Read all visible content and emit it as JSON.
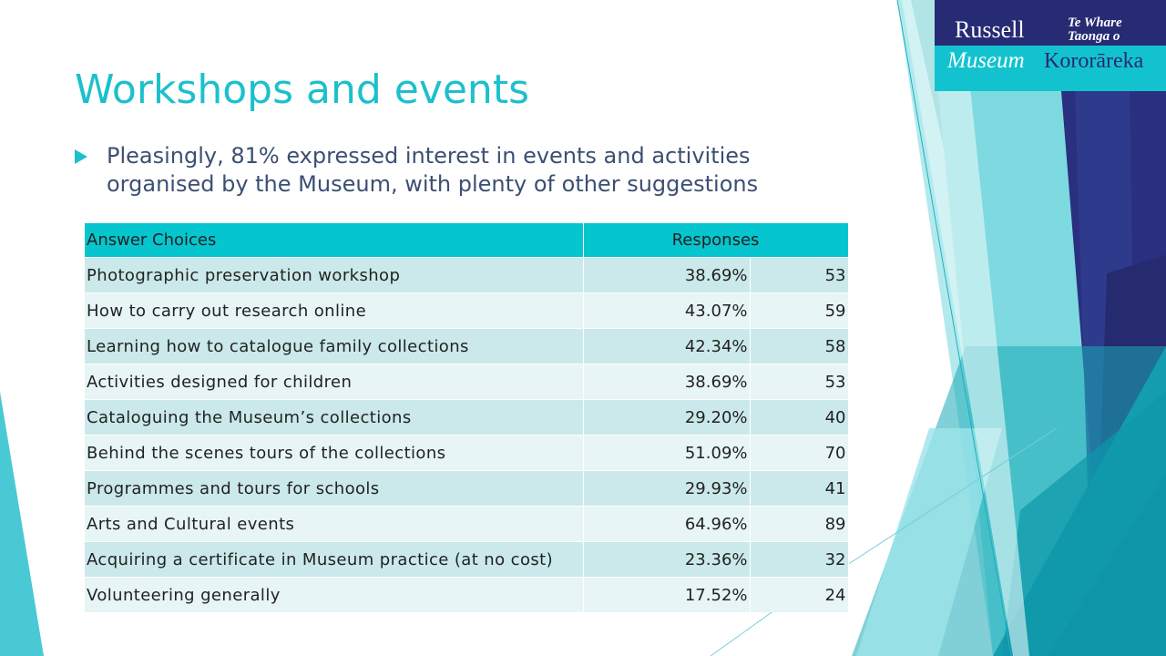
{
  "slide": {
    "title": "Workshops and events",
    "bullet": "Pleasingly, 81% expressed interest in events and activities organised by the Museum, with plenty of other suggestions"
  },
  "logo": {
    "line1_left": "Russell",
    "line1_right_a": "Te Whare",
    "line1_right_b": "Taonga o",
    "line2_left": "Museum",
    "line2_right": "Kororāreka"
  },
  "table": {
    "headers": [
      "Answer Choices",
      "Responses"
    ],
    "rows": [
      {
        "choice": "Photographic preservation workshop",
        "percent": "38.69%",
        "count": "53"
      },
      {
        "choice": "How to carry out research online",
        "percent": "43.07%",
        "count": "59"
      },
      {
        "choice": "Learning how to catalogue family collections",
        "percent": "42.34%",
        "count": "58"
      },
      {
        "choice": "Activities designed for children",
        "percent": "38.69%",
        "count": "53"
      },
      {
        "choice": "Cataloguing the Museum’s collections",
        "percent": "29.20%",
        "count": "40"
      },
      {
        "choice": "Behind the scenes tours of the collections",
        "percent": "51.09%",
        "count": "70"
      },
      {
        "choice": "Programmes and tours for schools",
        "percent": "29.93%",
        "count": "41"
      },
      {
        "choice": "Arts and Cultural events",
        "percent": "64.96%",
        "count": "89"
      },
      {
        "choice": "Acquiring a certificate in Museum practice (at no cost)",
        "percent": "23.36%",
        "count": "32"
      },
      {
        "choice": "Volunteering generally",
        "percent": "17.52%",
        "count": "24"
      }
    ]
  },
  "colors": {
    "accent": "#1cc0cc",
    "header_fill": "#05c5ce",
    "row_dark": "#cbe9eb",
    "row_light": "#e7f5f6",
    "navy": "#262b74"
  }
}
